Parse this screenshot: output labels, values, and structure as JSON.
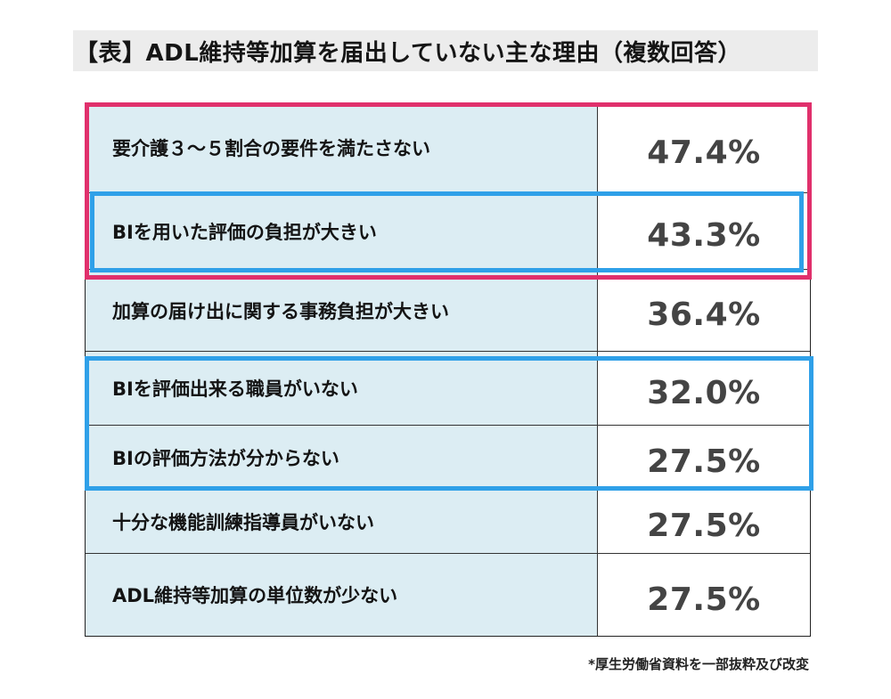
{
  "title": "【表】ADL維持等加算を届出していない主な理由（複数回答）",
  "chart_data": {
    "type": "table",
    "rows": [
      {
        "label": "要介護３～５割合の要件を満たさない",
        "value": "47.4%"
      },
      {
        "label": "BIを用いた評価の負担が大きい",
        "value": "43.3%"
      },
      {
        "label": "加算の届け出に関する事務負担が大きい",
        "value": "36.4%"
      },
      {
        "label": "BIを評価出来る職員がいない",
        "value": "32.0%"
      },
      {
        "label": "BIの評価方法が分からない",
        "value": "27.5%"
      },
      {
        "label": "十分な機能訓練指導員がいない",
        "value": "27.5%"
      },
      {
        "label": "ADL維持等加算の単位数が少ない",
        "value": "27.5%"
      }
    ]
  },
  "highlights": {
    "pink_color": "#e0306c",
    "blue_color": "#2fa0e8"
  },
  "colors": {
    "label_background": "#dcedf3",
    "value_text": "#444444"
  },
  "source_note": "*厚生労働省資料を一部抜粋及び改変"
}
